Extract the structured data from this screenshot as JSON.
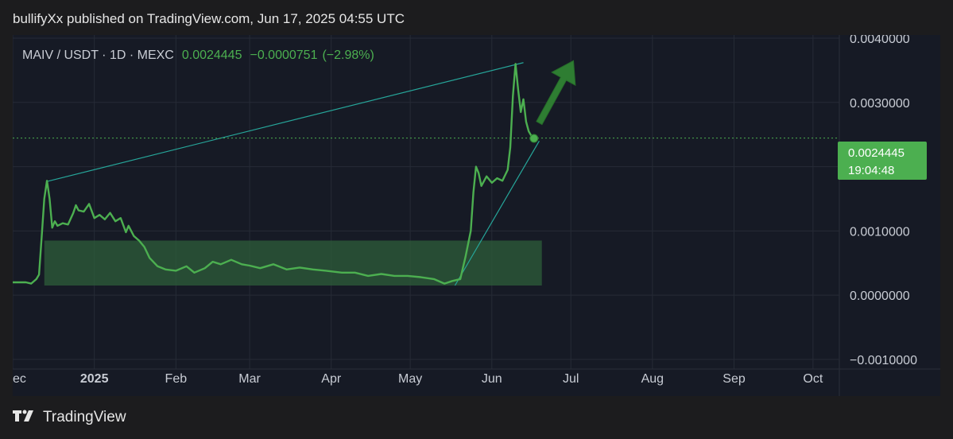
{
  "publisher_line": "bullifyXx published on TradingView.com, Jun 17, 2025 04:55 UTC",
  "footer": {
    "brand": "TradingView"
  },
  "colors": {
    "background": "#161a25",
    "line": "#4caf50",
    "price_tag": "#4caf50",
    "trendline": "#26a69a",
    "box_fill": "#2e5e3a"
  },
  "chart_data": {
    "type": "line",
    "symbol": "MAIV / USDT",
    "interval": "1D",
    "exchange": "MEXC",
    "last_price": "0.0024445",
    "change": "−0.0000751",
    "change_pct": "(−2.98%)",
    "countdown": "19:04:48",
    "price_tag_value": "0.0024445",
    "ylim": [
      -0.00115,
      0.00405
    ],
    "y_ticks": [
      "0.0040000",
      "0.0030000",
      "0.0020000",
      "0.0010000",
      "0.0000000",
      "−0.0010000"
    ],
    "y_tick_values": [
      0.004,
      0.003,
      0.002,
      0.001,
      0.0,
      -0.001
    ],
    "x_ticks": [
      {
        "label": "ec",
        "date": "2024-12-01",
        "bold": false
      },
      {
        "label": "2025",
        "date": "2025-01-01",
        "bold": true
      },
      {
        "label": "Feb",
        "date": "2025-02-01",
        "bold": false
      },
      {
        "label": "Mar",
        "date": "2025-03-01",
        "bold": false
      },
      {
        "label": "Apr",
        "date": "2025-04-01",
        "bold": false
      },
      {
        "label": "May",
        "date": "2025-05-01",
        "bold": false
      },
      {
        "label": "Jun",
        "date": "2025-06-01",
        "bold": false
      },
      {
        "label": "Jul",
        "date": "2025-07-01",
        "bold": false
      },
      {
        "label": "Aug",
        "date": "2025-08-01",
        "bold": false
      },
      {
        "label": "Sep",
        "date": "2025-09-01",
        "bold": false
      },
      {
        "label": "Oct",
        "date": "2025-10-01",
        "bold": false
      }
    ],
    "xlim": [
      "2024-12-01",
      "2025-10-11"
    ],
    "series": [
      {
        "points": [
          [
            "2024-12-01",
            0.0002
          ],
          [
            "2024-12-06",
            0.0002
          ],
          [
            "2024-12-08",
            0.00018
          ],
          [
            "2024-12-10",
            0.00025
          ],
          [
            "2024-12-11",
            0.00032
          ],
          [
            "2024-12-12",
            0.0009
          ],
          [
            "2024-12-13",
            0.0015
          ],
          [
            "2024-12-14",
            0.00178
          ],
          [
            "2024-12-15",
            0.0015
          ],
          [
            "2024-12-16",
            0.00105
          ],
          [
            "2024-12-17",
            0.00115
          ],
          [
            "2024-12-18",
            0.00108
          ],
          [
            "2024-12-20",
            0.00112
          ],
          [
            "2024-12-22",
            0.0011
          ],
          [
            "2024-12-24",
            0.00128
          ],
          [
            "2024-12-25",
            0.0014
          ],
          [
            "2024-12-26",
            0.00132
          ],
          [
            "2024-12-28",
            0.0013
          ],
          [
            "2024-12-30",
            0.00142
          ],
          [
            "2025-01-01",
            0.0012
          ],
          [
            "2025-01-03",
            0.00125
          ],
          [
            "2025-01-05",
            0.00118
          ],
          [
            "2025-01-07",
            0.00128
          ],
          [
            "2025-01-09",
            0.00115
          ],
          [
            "2025-01-11",
            0.0012
          ],
          [
            "2025-01-13",
            0.00098
          ],
          [
            "2025-01-14",
            0.00108
          ],
          [
            "2025-01-16",
            0.00092
          ],
          [
            "2025-01-18",
            0.00085
          ],
          [
            "2025-01-20",
            0.00075
          ],
          [
            "2025-01-22",
            0.00058
          ],
          [
            "2025-01-25",
            0.00045
          ],
          [
            "2025-01-28",
            0.0004
          ],
          [
            "2025-02-01",
            0.00038
          ],
          [
            "2025-02-05",
            0.00045
          ],
          [
            "2025-02-08",
            0.00035
          ],
          [
            "2025-02-12",
            0.00042
          ],
          [
            "2025-02-15",
            0.00052
          ],
          [
            "2025-02-18",
            0.00048
          ],
          [
            "2025-02-22",
            0.00055
          ],
          [
            "2025-02-26",
            0.00048
          ],
          [
            "2025-03-01",
            0.00046
          ],
          [
            "2025-03-05",
            0.00042
          ],
          [
            "2025-03-10",
            0.00048
          ],
          [
            "2025-03-15",
            0.0004
          ],
          [
            "2025-03-20",
            0.00043
          ],
          [
            "2025-03-25",
            0.0004
          ],
          [
            "2025-03-30",
            0.00038
          ],
          [
            "2025-04-05",
            0.00035
          ],
          [
            "2025-04-10",
            0.00035
          ],
          [
            "2025-04-15",
            0.0003
          ],
          [
            "2025-04-20",
            0.00033
          ],
          [
            "2025-04-25",
            0.0003
          ],
          [
            "2025-04-30",
            0.0003
          ],
          [
            "2025-05-05",
            0.00028
          ],
          [
            "2025-05-10",
            0.00025
          ],
          [
            "2025-05-14",
            0.00018
          ],
          [
            "2025-05-17",
            0.00022
          ],
          [
            "2025-05-20",
            0.00025
          ],
          [
            "2025-05-22",
            0.0006
          ],
          [
            "2025-05-24",
            0.001
          ],
          [
            "2025-05-25",
            0.0016
          ],
          [
            "2025-05-26",
            0.002
          ],
          [
            "2025-05-27",
            0.0019
          ],
          [
            "2025-05-28",
            0.0017
          ],
          [
            "2025-05-30",
            0.00185
          ],
          [
            "2025-06-01",
            0.00175
          ],
          [
            "2025-06-03",
            0.00182
          ],
          [
            "2025-06-05",
            0.00178
          ],
          [
            "2025-06-07",
            0.00195
          ],
          [
            "2025-06-08",
            0.0023
          ],
          [
            "2025-06-09",
            0.0031
          ],
          [
            "2025-06-10",
            0.0036
          ],
          [
            "2025-06-11",
            0.0032
          ],
          [
            "2025-06-12",
            0.00285
          ],
          [
            "2025-06-13",
            0.00305
          ],
          [
            "2025-06-14",
            0.0027
          ],
          [
            "2025-06-15",
            0.00255
          ],
          [
            "2025-06-16",
            0.00248
          ],
          [
            "2025-06-17",
            0.00244
          ]
        ]
      }
    ],
    "annotations": {
      "accumulation_box": {
        "start": "2024-12-13",
        "end": "2025-06-20",
        "low": 0.00015,
        "high": 0.00085
      },
      "upper_trendline": {
        "from": [
          "2024-12-14",
          0.00177
        ],
        "to": [
          "2025-06-13",
          0.00362
        ]
      },
      "support_trendline": {
        "from": [
          "2025-05-18",
          0.00015
        ],
        "to": [
          "2025-06-19",
          0.0024
        ]
      },
      "arrow": {
        "from": [
          "2025-06-19",
          0.00268
        ],
        "to": [
          "2025-07-02",
          0.00365
        ]
      },
      "marker": [
        "2025-06-17",
        0.00244
      ]
    }
  }
}
